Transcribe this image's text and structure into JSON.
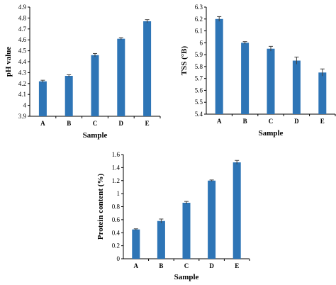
{
  "chart_data": [
    {
      "type": "bar",
      "title": "",
      "xlabel": "Sample",
      "ylabel": "pH value",
      "categories": [
        "A",
        "B",
        "C",
        "D",
        "E"
      ],
      "values": [
        4.22,
        4.27,
        4.46,
        4.61,
        4.77
      ],
      "errors": [
        0.01,
        0.01,
        0.015,
        0.01,
        0.015
      ],
      "ylim": [
        3.9,
        4.9
      ],
      "yticks": [
        3.9,
        4.0,
        4.1,
        4.2,
        4.3,
        4.4,
        4.5,
        4.6,
        4.7,
        4.8,
        4.9
      ],
      "ytick_labels": [
        "3.9",
        "4",
        "4.1",
        "4.2",
        "4.3",
        "4.4",
        "4.5",
        "4.6",
        "4.7",
        "4.8",
        "4.9"
      ],
      "grid": false,
      "legend": "none",
      "bar_color": "#2e75b6"
    },
    {
      "type": "bar",
      "title": "",
      "xlabel": "Sample",
      "ylabel": "TSS (°B)",
      "categories": [
        "A",
        "B",
        "C",
        "D",
        "E"
      ],
      "values": [
        6.2,
        6.0,
        5.95,
        5.85,
        5.75
      ],
      "errors": [
        0.02,
        0.01,
        0.02,
        0.03,
        0.03
      ],
      "ylim": [
        5.4,
        6.3
      ],
      "yticks": [
        5.4,
        5.5,
        5.6,
        5.7,
        5.8,
        5.9,
        6.0,
        6.1,
        6.2,
        6.3
      ],
      "ytick_labels": [
        "5.4",
        "5.5",
        "5.6",
        "5.7",
        "5.8",
        "5.9",
        "6",
        "6.1",
        "6.2",
        "6.3"
      ],
      "grid": false,
      "legend": "none",
      "bar_color": "#2e75b6"
    },
    {
      "type": "bar",
      "title": "",
      "xlabel": "Sample",
      "ylabel": "Protein content (%)",
      "categories": [
        "A",
        "B",
        "C",
        "D",
        "E"
      ],
      "values": [
        0.45,
        0.58,
        0.86,
        1.2,
        1.48
      ],
      "errors": [
        0.01,
        0.03,
        0.02,
        0.01,
        0.03
      ],
      "ylim": [
        0,
        1.6
      ],
      "yticks": [
        0,
        0.2,
        0.4,
        0.6,
        0.8,
        1.0,
        1.2,
        1.4,
        1.6
      ],
      "ytick_labels": [
        "0",
        "0.2",
        "0.4",
        "0.6",
        "0.8",
        "1",
        "1.2",
        "1.4",
        "1.6"
      ],
      "grid": false,
      "legend": "none",
      "bar_color": "#2e75b6"
    }
  ]
}
